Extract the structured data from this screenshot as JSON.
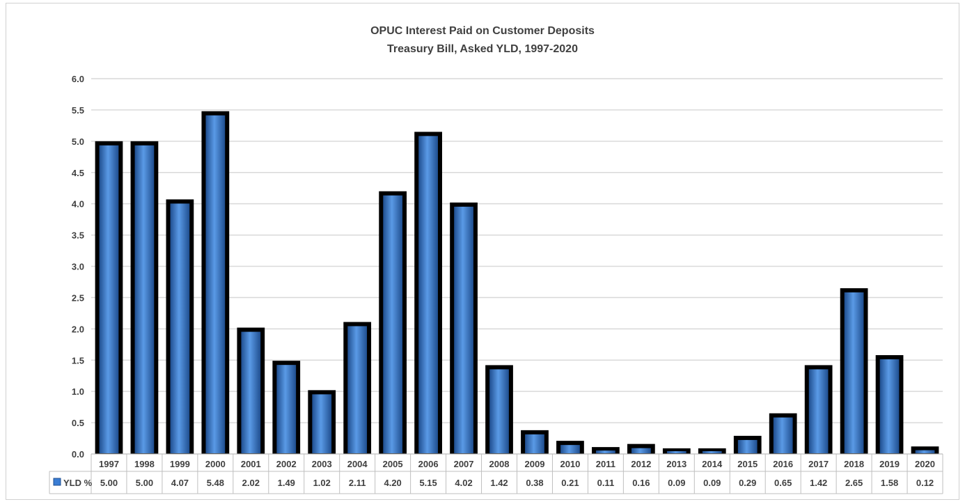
{
  "chart_data": {
    "type": "bar",
    "title": "OPUC Interest Paid on Customer Deposits",
    "subtitle": "Treasury Bill, Asked YLD, 1997-2020",
    "categories": [
      "1997",
      "1998",
      "1999",
      "2000",
      "2001",
      "2002",
      "2003",
      "2004",
      "2005",
      "2006",
      "2007",
      "2008",
      "2009",
      "2010",
      "2011",
      "2012",
      "2013",
      "2014",
      "2015",
      "2016",
      "2017",
      "2018",
      "2019",
      "2020"
    ],
    "series": [
      {
        "name": "YLD %",
        "values": [
          5.0,
          5.0,
          4.07,
          5.48,
          2.02,
          1.49,
          1.02,
          2.11,
          4.2,
          5.15,
          4.02,
          1.42,
          0.38,
          0.21,
          0.11,
          0.16,
          0.09,
          0.09,
          0.29,
          0.65,
          1.42,
          2.65,
          1.58,
          0.12
        ],
        "labels": [
          "5.00",
          "5.00",
          "4.07",
          "5.48",
          "2.02",
          "1.49",
          "1.02",
          "2.11",
          "4.20",
          "5.15",
          "4.02",
          "1.42",
          "0.38",
          "0.21",
          "0.11",
          "0.16",
          "0.09",
          "0.09",
          "0.29",
          "0.65",
          "1.42",
          "2.65",
          "1.58",
          "0.12"
        ]
      }
    ],
    "yticks": [
      "0.0",
      "0.5",
      "1.0",
      "1.5",
      "2.0",
      "2.5",
      "3.0",
      "3.5",
      "4.0",
      "4.5",
      "5.0",
      "5.5",
      "6.0"
    ],
    "ylim": [
      0,
      6
    ],
    "grid": true,
    "legend": "data-table",
    "bar_color": "#3a7dd4",
    "bar_border_color": "#000000",
    "grid_color": "#d9d9d9"
  }
}
